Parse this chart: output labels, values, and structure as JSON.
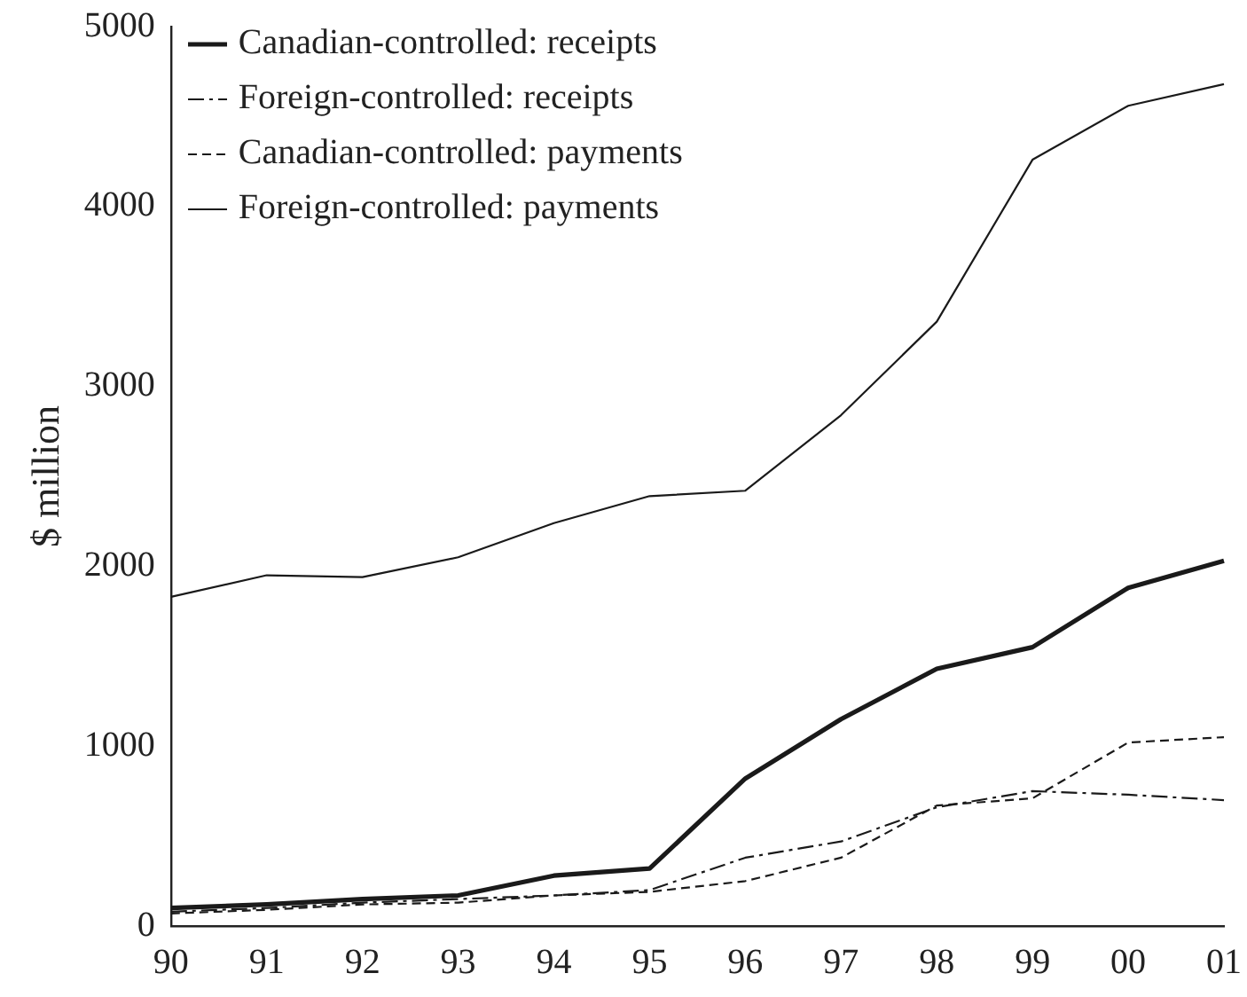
{
  "chart_data": {
    "type": "line",
    "ylabel": "$ million",
    "categories": [
      "90",
      "91",
      "92",
      "93",
      "94",
      "95",
      "96",
      "97",
      "98",
      "99",
      "00",
      "01"
    ],
    "ylim": [
      0,
      5000
    ],
    "yticks": [
      0,
      1000,
      2000,
      3000,
      4000,
      5000
    ],
    "grid": false,
    "legend": "top left",
    "marker": "none",
    "series": [
      {
        "name": "Canadian-controlled: receipts",
        "color": "#1a1a1a",
        "line_style": "solid",
        "values": [
          100,
          120,
          150,
          170,
          280,
          320,
          820,
          1150,
          1430,
          1550,
          1880,
          2030
        ]
      },
      {
        "name": "Foreign-controlled: receipts",
        "color": "#1a1a1a",
        "line_style": "dashdot",
        "values": [
          80,
          100,
          130,
          150,
          170,
          200,
          380,
          470,
          660,
          750,
          730,
          700
        ]
      },
      {
        "name": "Canadian-controlled: payments",
        "color": "#1a1a1a",
        "line_style": "dashed",
        "values": [
          70,
          90,
          120,
          130,
          170,
          190,
          250,
          380,
          670,
          710,
          1020,
          1050
        ]
      },
      {
        "name": "Foreign-controlled: payments",
        "color": "#1a1a1a",
        "line_style": "solid",
        "values": [
          1830,
          1950,
          1940,
          2050,
          2240,
          2390,
          2420,
          2840,
          3360,
          4260,
          4560,
          4680
        ]
      }
    ]
  }
}
